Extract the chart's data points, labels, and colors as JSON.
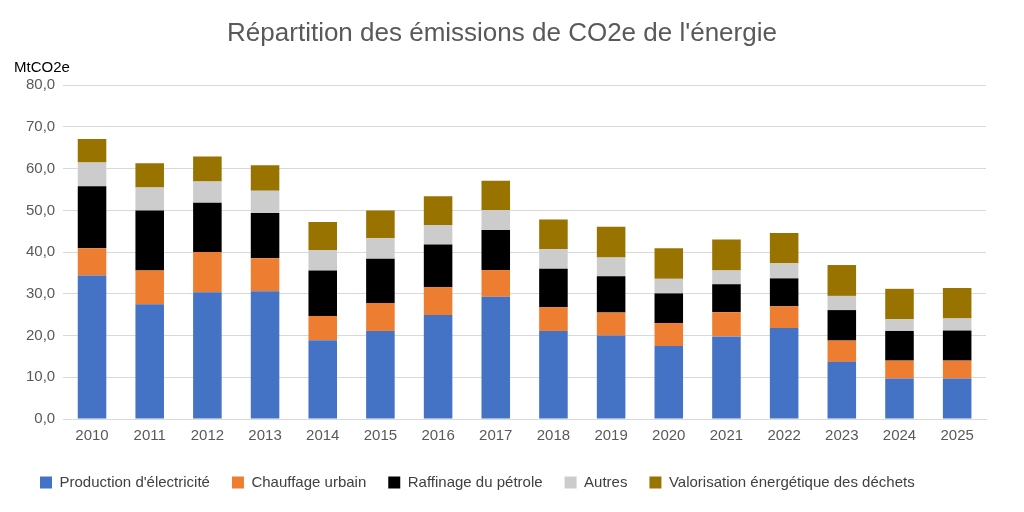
{
  "chart_data": {
    "type": "bar",
    "title": "Répartition des émissions de CO2e de l'énergie",
    "ylabel": "MtCO2e",
    "stacked": true,
    "grid": "y",
    "legend": "bottom",
    "categories": [
      "2010",
      "2011",
      "2012",
      "2013",
      "2014",
      "2015",
      "2016",
      "2017",
      "2018",
      "2019",
      "2020",
      "2021",
      "2022",
      "2023",
      "2024",
      "2025"
    ],
    "ylim": [
      0,
      80
    ],
    "yticks": [
      {
        "value": 0,
        "label": "0,0"
      },
      {
        "value": 10,
        "label": "10,0"
      },
      {
        "value": 20,
        "label": "20,0"
      },
      {
        "value": 30,
        "label": "30,0"
      },
      {
        "value": 40,
        "label": "40,0"
      },
      {
        "value": 50,
        "label": "50,0"
      },
      {
        "value": 60,
        "label": "60,0"
      },
      {
        "value": 70,
        "label": "70,0"
      },
      {
        "value": 80,
        "label": "80,0"
      }
    ],
    "series": [
      {
        "name": "Production d'électricité",
        "color": "#4472c4",
        "values": [
          34.4,
          27.5,
          30.4,
          30.6,
          18.9,
          21.1,
          24.9,
          29.3,
          21.1,
          20.0,
          17.5,
          19.8,
          21.8,
          13.7,
          9.7,
          9.7
        ]
      },
      {
        "name": "Chauffage urbain",
        "color": "#ed7d31",
        "values": [
          6.5,
          8.1,
          9.6,
          7.9,
          5.8,
          6.7,
          6.7,
          6.4,
          5.7,
          5.5,
          5.5,
          5.8,
          5.2,
          5.1,
          4.3,
          4.3
        ]
      },
      {
        "name": "Raffinage du pétrole",
        "color": "#000000",
        "values": [
          14.9,
          14.4,
          11.8,
          10.9,
          10.9,
          10.6,
          10.2,
          9.6,
          9.2,
          8.7,
          7.1,
          6.7,
          6.7,
          7.3,
          7.1,
          7.2
        ]
      },
      {
        "name": "Autres",
        "color": "#cccccc",
        "values": [
          5.7,
          5.5,
          5.1,
          5.3,
          4.9,
          4.9,
          4.7,
          4.8,
          4.7,
          4.5,
          3.5,
          3.3,
          3.6,
          3.4,
          2.8,
          2.9
        ]
      },
      {
        "name": "Valorisation énergétique des déchets",
        "color": "#997300",
        "values": [
          5.6,
          5.8,
          6.0,
          6.1,
          6.7,
          6.7,
          6.9,
          7.0,
          7.1,
          7.4,
          7.3,
          7.4,
          7.3,
          7.4,
          7.3,
          7.3
        ]
      }
    ]
  }
}
